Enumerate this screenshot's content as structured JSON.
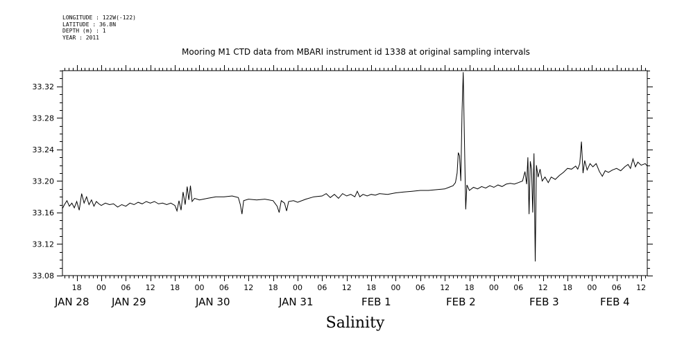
{
  "header": {
    "longitude": "LONGITUDE : 122W(-122)",
    "latitude": "LATITUDE : 36.8N",
    "depth": "DEPTH (m) : 1",
    "year": "YEAR : 2011"
  },
  "chart_data": {
    "type": "line",
    "title": "Mooring M1 CTD data from MBARI instrument id 1338 at original sampling intervals",
    "xlabel": "",
    "ylabel": "",
    "variable_label": "Salinity",
    "x_unit": "hours since JAN 28 00:00, 2011",
    "xlim": [
      14.5,
      157.5
    ],
    "ylim": [
      33.08,
      33.34
    ],
    "y_ticks": [
      33.08,
      33.12,
      33.16,
      33.2,
      33.24,
      33.28,
      33.32
    ],
    "y_tick_labels": [
      "33.08",
      "33.12",
      "33.16",
      "33.20",
      "33.24",
      "33.28",
      "33.32"
    ],
    "x_hour_ticks": [
      {
        "t": 18,
        "label": "18"
      },
      {
        "t": 24,
        "label": "00"
      },
      {
        "t": 30,
        "label": "06"
      },
      {
        "t": 36,
        "label": "12"
      },
      {
        "t": 42,
        "label": "18"
      },
      {
        "t": 48,
        "label": "00"
      },
      {
        "t": 54,
        "label": "06"
      },
      {
        "t": 60,
        "label": "12"
      },
      {
        "t": 66,
        "label": "18"
      },
      {
        "t": 72,
        "label": "00"
      },
      {
        "t": 78,
        "label": "06"
      },
      {
        "t": 84,
        "label": "12"
      },
      {
        "t": 90,
        "label": "18"
      },
      {
        "t": 96,
        "label": "00"
      },
      {
        "t": 102,
        "label": "06"
      },
      {
        "t": 108,
        "label": "12"
      },
      {
        "t": 114,
        "label": "18"
      },
      {
        "t": 120,
        "label": "00"
      },
      {
        "t": 126,
        "label": "06"
      },
      {
        "t": 132,
        "label": "12"
      },
      {
        "t": 138,
        "label": "18"
      },
      {
        "t": 144,
        "label": "00"
      },
      {
        "t": 150,
        "label": "06"
      },
      {
        "t": 156,
        "label": "12"
      }
    ],
    "x_day_labels": [
      {
        "t": 15,
        "label": "JAN 28"
      },
      {
        "t": 30,
        "label": "JAN 29"
      },
      {
        "t": 54,
        "label": "JAN 30"
      },
      {
        "t": 78,
        "label": "JAN 31"
      },
      {
        "t": 102,
        "label": "FEB  1"
      },
      {
        "t": 126,
        "label": "FEB  2"
      },
      {
        "t": 150,
        "label": "FEB  3"
      },
      {
        "t": 170,
        "label": "FEB  4"
      }
    ],
    "series": [
      {
        "color": "#000000",
        "points": [
          [
            14.5,
            33.165
          ],
          [
            15.0,
            33.17
          ],
          [
            15.6,
            33.175
          ],
          [
            16.2,
            33.168
          ],
          [
            16.8,
            33.172
          ],
          [
            17.4,
            33.166
          ],
          [
            18.0,
            33.174
          ],
          [
            18.6,
            33.163
          ],
          [
            19.2,
            33.184
          ],
          [
            19.8,
            33.172
          ],
          [
            20.4,
            33.18
          ],
          [
            21.0,
            33.17
          ],
          [
            21.6,
            33.176
          ],
          [
            22.2,
            33.168
          ],
          [
            22.8,
            33.174
          ],
          [
            23.4,
            33.171
          ],
          [
            24.0,
            33.169
          ],
          [
            25.0,
            33.172
          ],
          [
            26.0,
            33.17
          ],
          [
            27.0,
            33.171
          ],
          [
            28.0,
            33.167
          ],
          [
            29.0,
            33.17
          ],
          [
            30.0,
            33.168
          ],
          [
            31.0,
            33.172
          ],
          [
            32.0,
            33.17
          ],
          [
            33.0,
            33.173
          ],
          [
            34.0,
            33.171
          ],
          [
            35.0,
            33.174
          ],
          [
            36.0,
            33.172
          ],
          [
            37.0,
            33.174
          ],
          [
            38.0,
            33.171
          ],
          [
            39.0,
            33.172
          ],
          [
            40.0,
            33.17
          ],
          [
            41.0,
            33.172
          ],
          [
            42.0,
            33.169
          ],
          [
            42.5,
            33.162
          ],
          [
            43.0,
            33.175
          ],
          [
            43.5,
            33.163
          ],
          [
            44.0,
            33.186
          ],
          [
            44.5,
            33.17
          ],
          [
            45.0,
            33.193
          ],
          [
            45.4,
            33.176
          ],
          [
            45.8,
            33.194
          ],
          [
            46.2,
            33.174
          ],
          [
            46.8,
            33.178
          ],
          [
            48.0,
            33.176
          ],
          [
            50.0,
            33.178
          ],
          [
            52.0,
            33.18
          ],
          [
            54.0,
            33.18
          ],
          [
            56.0,
            33.181
          ],
          [
            57.5,
            33.179
          ],
          [
            58.0,
            33.17
          ],
          [
            58.4,
            33.158
          ],
          [
            58.8,
            33.175
          ],
          [
            60.0,
            33.177
          ],
          [
            62.0,
            33.176
          ],
          [
            64.0,
            33.177
          ],
          [
            66.0,
            33.175
          ],
          [
            67.0,
            33.168
          ],
          [
            67.5,
            33.16
          ],
          [
            68.0,
            33.175
          ],
          [
            68.8,
            33.172
          ],
          [
            69.3,
            33.162
          ],
          [
            69.8,
            33.174
          ],
          [
            71.0,
            33.175
          ],
          [
            72.0,
            33.173
          ],
          [
            74.0,
            33.177
          ],
          [
            76.0,
            33.18
          ],
          [
            78.0,
            33.181
          ],
          [
            79.0,
            33.184
          ],
          [
            80.0,
            33.179
          ],
          [
            81.0,
            33.183
          ],
          [
            82.0,
            33.178
          ],
          [
            83.0,
            33.184
          ],
          [
            84.0,
            33.181
          ],
          [
            85.0,
            33.183
          ],
          [
            86.0,
            33.18
          ],
          [
            86.6,
            33.187
          ],
          [
            87.2,
            33.18
          ],
          [
            88.0,
            33.183
          ],
          [
            89.0,
            33.181
          ],
          [
            90.0,
            33.183
          ],
          [
            91.0,
            33.182
          ],
          [
            92.0,
            33.184
          ],
          [
            94.0,
            33.183
          ],
          [
            96.0,
            33.185
          ],
          [
            98.0,
            33.186
          ],
          [
            100.0,
            33.187
          ],
          [
            102.0,
            33.188
          ],
          [
            104.0,
            33.188
          ],
          [
            106.0,
            33.189
          ],
          [
            108.0,
            33.19
          ],
          [
            109.0,
            33.192
          ],
          [
            110.0,
            33.194
          ],
          [
            110.6,
            33.198
          ],
          [
            111.0,
            33.21
          ],
          [
            111.3,
            33.236
          ],
          [
            111.6,
            33.232
          ],
          [
            111.9,
            33.2
          ],
          [
            112.2,
            33.288
          ],
          [
            112.5,
            33.338
          ],
          [
            112.8,
            33.25
          ],
          [
            113.1,
            33.164
          ],
          [
            113.4,
            33.195
          ],
          [
            114.0,
            33.188
          ],
          [
            115.0,
            33.192
          ],
          [
            116.0,
            33.19
          ],
          [
            117.0,
            33.193
          ],
          [
            118.0,
            33.191
          ],
          [
            119.0,
            33.194
          ],
          [
            120.0,
            33.192
          ],
          [
            121.0,
            33.195
          ],
          [
            122.0,
            33.193
          ],
          [
            123.0,
            33.196
          ],
          [
            124.0,
            33.197
          ],
          [
            125.0,
            33.196
          ],
          [
            126.0,
            33.198
          ],
          [
            127.0,
            33.2
          ],
          [
            127.6,
            33.212
          ],
          [
            128.0,
            33.196
          ],
          [
            128.3,
            33.23
          ],
          [
            128.6,
            33.158
          ],
          [
            128.9,
            33.225
          ],
          [
            129.2,
            33.215
          ],
          [
            129.5,
            33.16
          ],
          [
            129.8,
            33.235
          ],
          [
            130.1,
            33.098
          ],
          [
            130.4,
            33.22
          ],
          [
            130.8,
            33.205
          ],
          [
            131.3,
            33.215
          ],
          [
            131.8,
            33.2
          ],
          [
            132.5,
            33.205
          ],
          [
            133.3,
            33.198
          ],
          [
            134.0,
            33.205
          ],
          [
            135.0,
            33.202
          ],
          [
            136.0,
            33.207
          ],
          [
            137.0,
            33.211
          ],
          [
            138.0,
            33.216
          ],
          [
            139.0,
            33.215
          ],
          [
            140.0,
            33.219
          ],
          [
            140.5,
            33.215
          ],
          [
            141.0,
            33.222
          ],
          [
            141.4,
            33.25
          ],
          [
            141.8,
            33.21
          ],
          [
            142.2,
            33.226
          ],
          [
            142.8,
            33.214
          ],
          [
            143.5,
            33.222
          ],
          [
            144.2,
            33.218
          ],
          [
            145.0,
            33.222
          ],
          [
            145.8,
            33.212
          ],
          [
            146.5,
            33.206
          ],
          [
            147.2,
            33.213
          ],
          [
            148.0,
            33.211
          ],
          [
            149.0,
            33.214
          ],
          [
            150.0,
            33.216
          ],
          [
            151.0,
            33.213
          ],
          [
            152.0,
            33.218
          ],
          [
            152.8,
            33.221
          ],
          [
            153.4,
            33.216
          ],
          [
            154.0,
            33.228
          ],
          [
            154.6,
            33.218
          ],
          [
            155.2,
            33.224
          ],
          [
            156.0,
            33.22
          ],
          [
            157.0,
            33.222
          ],
          [
            157.5,
            33.219
          ]
        ]
      }
    ]
  }
}
